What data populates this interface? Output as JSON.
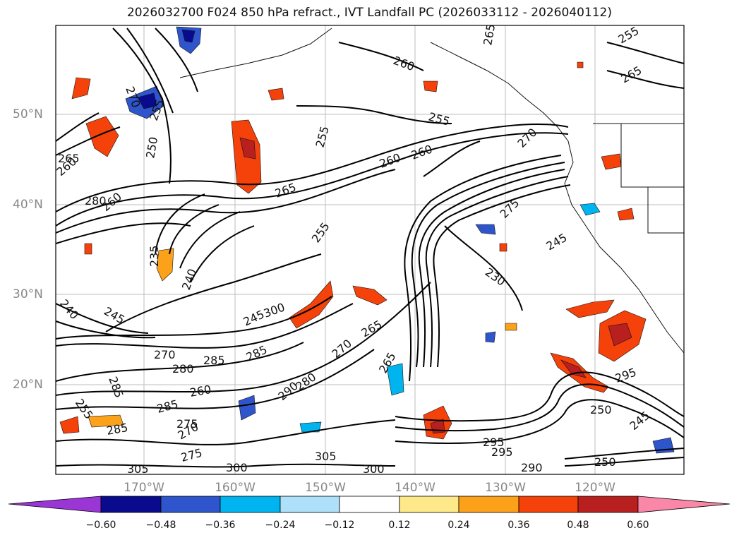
{
  "title": "2026032700 F024 850 hPa refract., IVT Landfall PC (2026033112 - 2026040112)",
  "lat_labels": [
    "50°N",
    "40°N",
    "30°N",
    "20°N"
  ],
  "lon_labels": [
    "170°W",
    "160°W",
    "150°W",
    "140°W",
    "130°W",
    "120°W"
  ],
  "colorbar": {
    "ticks": [
      "−0.60",
      "−0.48",
      "−0.36",
      "−0.24",
      "−0.12",
      "0.12",
      "0.24",
      "0.36",
      "0.48",
      "0.60"
    ],
    "colors": [
      "#9a35d6",
      "#0a0a8c",
      "#2e55cc",
      "#00b4f0",
      "#aee0fa",
      "#ffffff",
      "#fde88a",
      "#fba21a",
      "#f4420a",
      "#b81f1f",
      "#fb87a8"
    ]
  },
  "contour_labels": [
    "265",
    "270",
    "255",
    "255",
    "260",
    "260",
    "255",
    "255",
    "265",
    "260",
    "260",
    "265",
    "265",
    "255",
    "280",
    "260",
    "270",
    "250",
    "275",
    "235",
    "240",
    "245",
    "230",
    "245",
    "240",
    "245",
    "265",
    "270",
    "280",
    "285",
    "270",
    "265",
    "285",
    "290",
    "280",
    "260",
    "255",
    "285",
    "285",
    "275",
    "285",
    "270",
    "275",
    "305",
    "300",
    "305",
    "300",
    "295",
    "295",
    "290",
    "295",
    "250",
    "245",
    "250",
    "300",
    "265"
  ]
}
